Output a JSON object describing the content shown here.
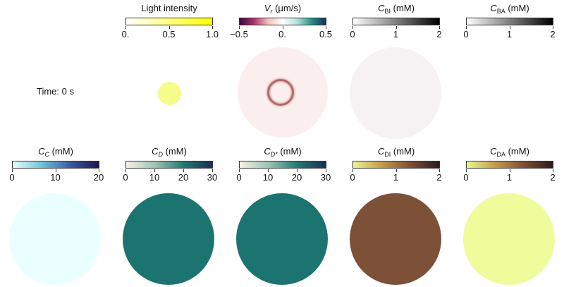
{
  "time_label": "Time: 0 s",
  "panels": {
    "light": {
      "title": "Light intensity",
      "ticks": [
        "0.",
        "0.5",
        "1.0"
      ],
      "tick_values": [
        0,
        0.5,
        1.0
      ],
      "range": [
        0,
        1.0
      ],
      "gradient": [
        "#ffffff",
        "#ffff00"
      ]
    },
    "vr": {
      "title_symbol": "V",
      "title_sub": "r",
      "title_unit": "(μm/s)",
      "ticks": [
        "−0.5",
        "0.",
        "0.5"
      ],
      "tick_values": [
        -0.5,
        0,
        0.5
      ],
      "range": [
        -0.5,
        0.5
      ],
      "gradient": [
        "#3d0a3a",
        "#a8336b",
        "#f4c3c0",
        "#ffffff",
        "#b6e0d7",
        "#2a8f88",
        "#173054"
      ]
    },
    "cbi": {
      "title_symbol": "C",
      "title_sub": "BI",
      "title_unit": "(mM)",
      "ticks": [
        "0",
        "1",
        "2"
      ],
      "tick_values": [
        0,
        1,
        2
      ],
      "range": [
        0,
        2
      ],
      "gradient": [
        "#ffffff",
        "#000000"
      ]
    },
    "cba": {
      "title_symbol": "C",
      "title_sub": "BA",
      "title_unit": "(mM)",
      "ticks": [
        "0",
        "1",
        "2"
      ],
      "tick_values": [
        0,
        1,
        2
      ],
      "range": [
        0,
        2
      ],
      "gradient": [
        "#ffffff",
        "#000000"
      ]
    },
    "cc": {
      "title_symbol": "C",
      "title_sub": "C",
      "title_unit": "(mM)",
      "ticks": [
        "0",
        "10",
        "20"
      ],
      "tick_values": [
        0,
        10,
        20
      ],
      "range": [
        0,
        20
      ],
      "gradient": [
        "#eaffff",
        "#6fc6d8",
        "#3a5aa6",
        "#1c1546"
      ]
    },
    "cd": {
      "title_symbol": "C",
      "title_sub": "D",
      "title_unit": "(mM)",
      "ticks": [
        "0",
        "10",
        "20",
        "30"
      ],
      "tick_values": [
        0,
        10,
        20,
        30
      ],
      "range": [
        0,
        30
      ],
      "gradient": [
        "#f6f3e6",
        "#9fc3b4",
        "#1f7a72",
        "#1b2d57"
      ]
    },
    "cdstar": {
      "title_symbol": "C",
      "title_sub": "D*",
      "title_unit": "(mM)",
      "ticks": [
        "0",
        "10",
        "20",
        "30"
      ],
      "tick_values": [
        0,
        10,
        20,
        30
      ],
      "range": [
        0,
        30
      ],
      "gradient": [
        "#f6f3e6",
        "#9fc3b4",
        "#1f7a72",
        "#1b2d57"
      ]
    },
    "cdi": {
      "title_symbol": "C",
      "title_sub": "DI",
      "title_unit": "(mM)",
      "ticks": [
        "0",
        "1",
        "2"
      ],
      "tick_values": [
        0,
        1,
        2
      ],
      "range": [
        0,
        2
      ],
      "gradient": [
        "#e8f890",
        "#c59b45",
        "#7d4e35",
        "#2b1a19"
      ]
    },
    "cda": {
      "title_symbol": "C",
      "title_sub": "DA",
      "title_unit": "(mM)",
      "ticks": [
        "0",
        "1",
        "2"
      ],
      "tick_values": [
        0,
        1,
        2
      ],
      "range": [
        0,
        2
      ],
      "gradient": [
        "#e8f890",
        "#c59b45",
        "#7d4e35",
        "#2b1a19"
      ]
    }
  },
  "fields": {
    "light_spot": "#f6fb8a",
    "vr_disc": "#fbeeee",
    "vr_ring": "#b46a66",
    "cbi_disc": "#f6f2f3",
    "cc_disc": "#eaffff",
    "cd_disc": "#1c7471",
    "cdstar_disc": "#1c7471",
    "cdi_disc": "#7d5038",
    "cda_disc": "#eefc9c"
  }
}
